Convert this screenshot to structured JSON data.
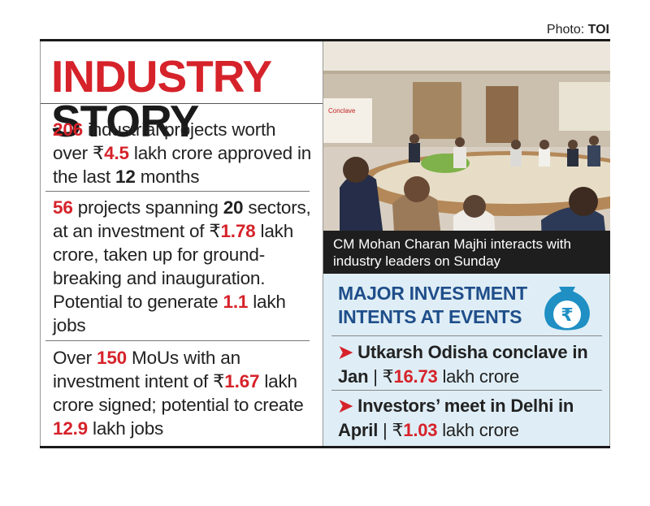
{
  "credit": {
    "label": "Photo:",
    "source": "TOI"
  },
  "title": {
    "part1": "INDUSTRY",
    "part2": "STORY"
  },
  "facts": [
    {
      "segments": [
        {
          "t": "206",
          "s": "n"
        },
        {
          "t": " industrial projects worth over ",
          "s": ""
        },
        {
          "t": "₹",
          "s": ""
        },
        {
          "t": "4.5",
          "s": "n"
        },
        {
          "t": " lakh crore approved in the last ",
          "s": ""
        },
        {
          "t": "12",
          "s": "k"
        },
        {
          "t": " months",
          "s": ""
        }
      ]
    },
    {
      "segments": [
        {
          "t": "56",
          "s": "n"
        },
        {
          "t": " projects spanning ",
          "s": ""
        },
        {
          "t": "20",
          "s": "k"
        },
        {
          "t": " sectors, at an investment of ",
          "s": ""
        },
        {
          "t": "₹",
          "s": ""
        },
        {
          "t": "1.78",
          "s": "n"
        },
        {
          "t": " lakh crore, taken up for ground-breaking and inauguration. Potential to generate ",
          "s": ""
        },
        {
          "t": "1.1",
          "s": "n"
        },
        {
          "t": " lakh jobs",
          "s": ""
        }
      ]
    },
    {
      "segments": [
        {
          "t": "Over ",
          "s": ""
        },
        {
          "t": "150",
          "s": "n"
        },
        {
          "t": " MoUs with an investment intent of ",
          "s": ""
        },
        {
          "t": "₹",
          "s": ""
        },
        {
          "t": "1.67",
          "s": "n"
        },
        {
          "t": " lakh crore signed; potential to create ",
          "s": ""
        },
        {
          "t": "12.9",
          "s": "n"
        },
        {
          "t": " lakh jobs",
          "s": ""
        }
      ]
    }
  ],
  "photo": {
    "caption": "CM Mohan Charan Majhi interacts with industry leaders on Sunday",
    "banner_text": "Conclave"
  },
  "investment": {
    "heading_line1": "MAJOR INVESTMENT",
    "heading_line2": "INTENTS AT EVENTS",
    "badge_symbol": "₹",
    "badge_icon": "money-bag-icon",
    "items": [
      {
        "arrow": "➤",
        "event": "Utkarsh Odisha conclave in Jan",
        "sep": " | ",
        "currency": "₹",
        "amount": "16.73",
        "unit": " lakh crore"
      },
      {
        "arrow": "➤",
        "event": "Investors’ meet in Delhi in April",
        "sep": " | ",
        "currency": "₹",
        "amount": "1.03",
        "unit": " lakh crore"
      }
    ]
  },
  "colors": {
    "accent_red": "#d6222a",
    "heading_blue": "#1f4e8a",
    "panel_bg": "#dfeef6",
    "caption_bg": "#1e1e1e"
  }
}
